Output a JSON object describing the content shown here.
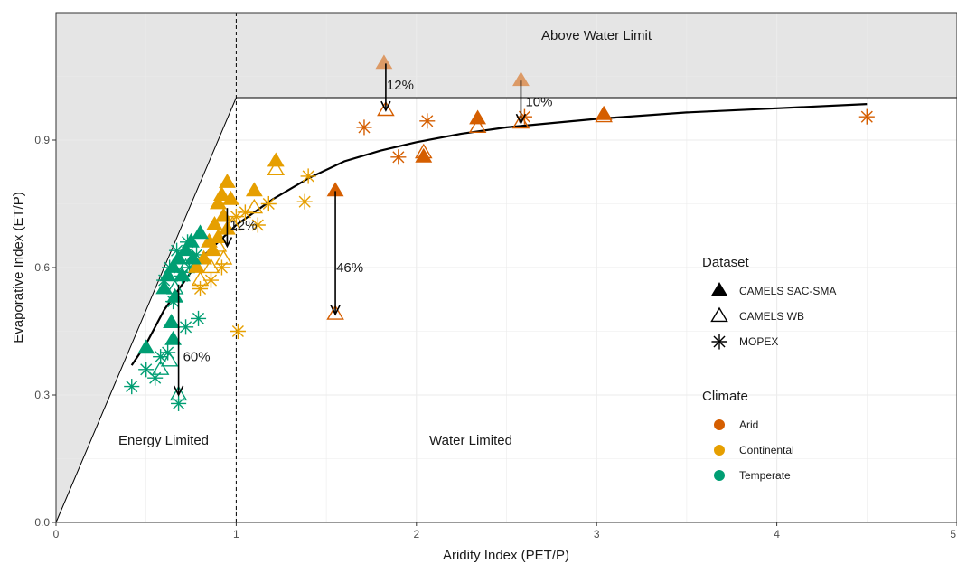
{
  "chart_data": {
    "type": "scatter",
    "xlabel": "Aridity Index (PET/P)",
    "ylabel": "Evaporative Index (ET/P)",
    "xlim": [
      0,
      5
    ],
    "ylim": [
      0,
      1.2
    ],
    "xticks": [
      "0",
      "1",
      "2",
      "3",
      "4",
      "5"
    ],
    "yticks": [
      "0.0",
      "0.3",
      "0.6",
      "0.9"
    ],
    "ytick_values": [
      0,
      0.3,
      0.6,
      0.9
    ],
    "grid": true,
    "region_labels": {
      "above": "Above Water Limit",
      "energy": "Energy Limited",
      "water": "Water Limited"
    },
    "colors": {
      "Arid": "#D55E00",
      "Continental": "#E69F00",
      "Temperate": "#009E73",
      "curve": "#000000",
      "shade": "#e5e5e5"
    },
    "legend": {
      "dataset_title": "Dataset",
      "dataset_items": [
        {
          "label": "CAMELS SAC-SMA",
          "shape": "filled-triangle"
        },
        {
          "label": "CAMELS WB",
          "shape": "open-triangle"
        },
        {
          "label": "MOPEX",
          "shape": "asterisk"
        }
      ],
      "climate_title": "Climate",
      "climate_items": [
        {
          "label": "Arid",
          "color": "#D55E00"
        },
        {
          "label": "Continental",
          "color": "#E69F00"
        },
        {
          "label": "Temperate",
          "color": "#009E73"
        }
      ],
      "position": "right"
    },
    "budyko_curve": [
      [
        0.42,
        0.37
      ],
      [
        0.5,
        0.42
      ],
      [
        0.6,
        0.5
      ],
      [
        0.7,
        0.56
      ],
      [
        0.8,
        0.62
      ],
      [
        0.9,
        0.66
      ],
      [
        1.0,
        0.7
      ],
      [
        1.2,
        0.76
      ],
      [
        1.4,
        0.81
      ],
      [
        1.6,
        0.85
      ],
      [
        1.8,
        0.875
      ],
      [
        2.0,
        0.895
      ],
      [
        2.25,
        0.915
      ],
      [
        2.5,
        0.93
      ],
      [
        3.0,
        0.95
      ],
      [
        3.5,
        0.965
      ],
      [
        4.0,
        0.975
      ],
      [
        4.5,
        0.985
      ]
    ],
    "arrows": [
      {
        "x": 0.68,
        "y_from": 0.56,
        "y_to": 0.3,
        "label": "60%",
        "label_x": 0.7,
        "label_y": 0.39
      },
      {
        "x": 0.95,
        "y_from": 0.74,
        "y_to": 0.65,
        "label": "12%",
        "label_x": 0.96,
        "label_y": 0.7
      },
      {
        "x": 1.55,
        "y_from": 0.78,
        "y_to": 0.49,
        "label": "46%",
        "label_x": 1.55,
        "label_y": 0.6
      },
      {
        "x": 1.83,
        "y_from": 1.08,
        "y_to": 0.97,
        "label": "12%",
        "label_x": 1.83,
        "label_y": 1.03
      },
      {
        "x": 2.58,
        "y_from": 1.04,
        "y_to": 0.94,
        "label": "10%",
        "label_x": 2.6,
        "label_y": 0.99
      }
    ],
    "series": [
      {
        "name": "CAMELS SAC-SMA",
        "shape": "filled-triangle",
        "points": [
          {
            "x": 1.82,
            "y": 1.08,
            "climate": "Arid",
            "faded": true
          },
          {
            "x": 2.58,
            "y": 1.04,
            "climate": "Arid",
            "faded": true
          },
          {
            "x": 1.55,
            "y": 0.78,
            "climate": "Arid"
          },
          {
            "x": 2.34,
            "y": 0.95,
            "climate": "Arid"
          },
          {
            "x": 2.04,
            "y": 0.86,
            "climate": "Arid"
          },
          {
            "x": 3.04,
            "y": 0.96,
            "climate": "Arid"
          },
          {
            "x": 1.22,
            "y": 0.85,
            "climate": "Continental"
          },
          {
            "x": 1.1,
            "y": 0.78,
            "climate": "Continental"
          },
          {
            "x": 0.95,
            "y": 0.8,
            "climate": "Continental"
          },
          {
            "x": 0.92,
            "y": 0.77,
            "climate": "Continental"
          },
          {
            "x": 0.9,
            "y": 0.75,
            "climate": "Continental"
          },
          {
            "x": 0.97,
            "y": 0.76,
            "climate": "Continental"
          },
          {
            "x": 0.93,
            "y": 0.72,
            "climate": "Continental"
          },
          {
            "x": 0.88,
            "y": 0.7,
            "climate": "Continental"
          },
          {
            "x": 0.9,
            "y": 0.67,
            "climate": "Continental"
          },
          {
            "x": 0.85,
            "y": 0.66,
            "climate": "Continental"
          },
          {
            "x": 0.87,
            "y": 0.64,
            "climate": "Continental"
          },
          {
            "x": 0.95,
            "y": 0.69,
            "climate": "Continental"
          },
          {
            "x": 0.82,
            "y": 0.62,
            "climate": "Continental"
          },
          {
            "x": 0.78,
            "y": 0.6,
            "climate": "Continental"
          },
          {
            "x": 0.8,
            "y": 0.68,
            "climate": "Temperate"
          },
          {
            "x": 0.75,
            "y": 0.66,
            "climate": "Temperate"
          },
          {
            "x": 0.72,
            "y": 0.64,
            "climate": "Temperate"
          },
          {
            "x": 0.68,
            "y": 0.62,
            "climate": "Temperate"
          },
          {
            "x": 0.65,
            "y": 0.6,
            "climate": "Temperate"
          },
          {
            "x": 0.62,
            "y": 0.58,
            "climate": "Temperate"
          },
          {
            "x": 0.7,
            "y": 0.58,
            "climate": "Temperate"
          },
          {
            "x": 0.6,
            "y": 0.55,
            "climate": "Temperate"
          },
          {
            "x": 0.66,
            "y": 0.53,
            "climate": "Temperate"
          },
          {
            "x": 0.64,
            "y": 0.47,
            "climate": "Temperate"
          },
          {
            "x": 0.65,
            "y": 0.43,
            "climate": "Temperate"
          },
          {
            "x": 0.5,
            "y": 0.41,
            "climate": "Temperate"
          },
          {
            "x": 0.76,
            "y": 0.62,
            "climate": "Temperate"
          }
        ]
      },
      {
        "name": "CAMELS WB",
        "shape": "open-triangle",
        "points": [
          {
            "x": 1.83,
            "y": 0.97,
            "climate": "Arid"
          },
          {
            "x": 2.58,
            "y": 0.94,
            "climate": "Arid"
          },
          {
            "x": 1.55,
            "y": 0.49,
            "climate": "Arid"
          },
          {
            "x": 2.34,
            "y": 0.93,
            "climate": "Arid"
          },
          {
            "x": 3.04,
            "y": 0.955,
            "climate": "Arid"
          },
          {
            "x": 2.04,
            "y": 0.87,
            "climate": "Arid"
          },
          {
            "x": 1.22,
            "y": 0.83,
            "climate": "Continental"
          },
          {
            "x": 1.1,
            "y": 0.74,
            "climate": "Continental"
          },
          {
            "x": 0.98,
            "y": 0.7,
            "climate": "Continental"
          },
          {
            "x": 0.9,
            "y": 0.65,
            "climate": "Continental"
          },
          {
            "x": 0.86,
            "y": 0.6,
            "climate": "Continental"
          },
          {
            "x": 0.8,
            "y": 0.57,
            "climate": "Continental"
          },
          {
            "x": 0.93,
            "y": 0.62,
            "climate": "Continental"
          },
          {
            "x": 0.72,
            "y": 0.6,
            "climate": "Temperate"
          },
          {
            "x": 0.66,
            "y": 0.55,
            "climate": "Temperate"
          },
          {
            "x": 0.63,
            "y": 0.38,
            "climate": "Temperate"
          },
          {
            "x": 0.68,
            "y": 0.3,
            "climate": "Temperate"
          },
          {
            "x": 0.58,
            "y": 0.36,
            "climate": "Temperate"
          }
        ]
      },
      {
        "name": "MOPEX",
        "shape": "asterisk",
        "points": [
          {
            "x": 4.5,
            "y": 0.955,
            "climate": "Arid"
          },
          {
            "x": 2.6,
            "y": 0.955,
            "climate": "Arid"
          },
          {
            "x": 2.06,
            "y": 0.945,
            "climate": "Arid"
          },
          {
            "x": 1.71,
            "y": 0.93,
            "climate": "Arid"
          },
          {
            "x": 1.9,
            "y": 0.86,
            "climate": "Arid"
          },
          {
            "x": 1.4,
            "y": 0.815,
            "climate": "Continental"
          },
          {
            "x": 1.38,
            "y": 0.755,
            "climate": "Continental"
          },
          {
            "x": 1.18,
            "y": 0.75,
            "climate": "Continental"
          },
          {
            "x": 1.12,
            "y": 0.7,
            "climate": "Continental"
          },
          {
            "x": 1.05,
            "y": 0.73,
            "climate": "Continental"
          },
          {
            "x": 1.0,
            "y": 0.72,
            "climate": "Continental"
          },
          {
            "x": 1.01,
            "y": 0.45,
            "climate": "Continental"
          },
          {
            "x": 0.86,
            "y": 0.57,
            "climate": "Continental"
          },
          {
            "x": 0.92,
            "y": 0.6,
            "climate": "Continental"
          },
          {
            "x": 0.8,
            "y": 0.55,
            "climate": "Continental"
          },
          {
            "x": 0.42,
            "y": 0.32,
            "climate": "Temperate"
          },
          {
            "x": 0.5,
            "y": 0.36,
            "climate": "Temperate"
          },
          {
            "x": 0.55,
            "y": 0.34,
            "climate": "Temperate"
          },
          {
            "x": 0.58,
            "y": 0.39,
            "climate": "Temperate"
          },
          {
            "x": 0.62,
            "y": 0.4,
            "climate": "Temperate"
          },
          {
            "x": 0.68,
            "y": 0.28,
            "climate": "Temperate"
          },
          {
            "x": 0.72,
            "y": 0.46,
            "climate": "Temperate"
          },
          {
            "x": 0.79,
            "y": 0.48,
            "climate": "Temperate"
          },
          {
            "x": 0.6,
            "y": 0.57,
            "climate": "Temperate"
          },
          {
            "x": 0.65,
            "y": 0.52,
            "climate": "Temperate"
          },
          {
            "x": 0.7,
            "y": 0.58,
            "climate": "Temperate"
          },
          {
            "x": 0.74,
            "y": 0.6,
            "climate": "Temperate"
          },
          {
            "x": 0.73,
            "y": 0.66,
            "climate": "Temperate"
          },
          {
            "x": 0.78,
            "y": 0.63,
            "climate": "Temperate"
          },
          {
            "x": 0.67,
            "y": 0.64,
            "climate": "Temperate"
          },
          {
            "x": 0.63,
            "y": 0.6,
            "climate": "Temperate"
          }
        ]
      }
    ]
  }
}
